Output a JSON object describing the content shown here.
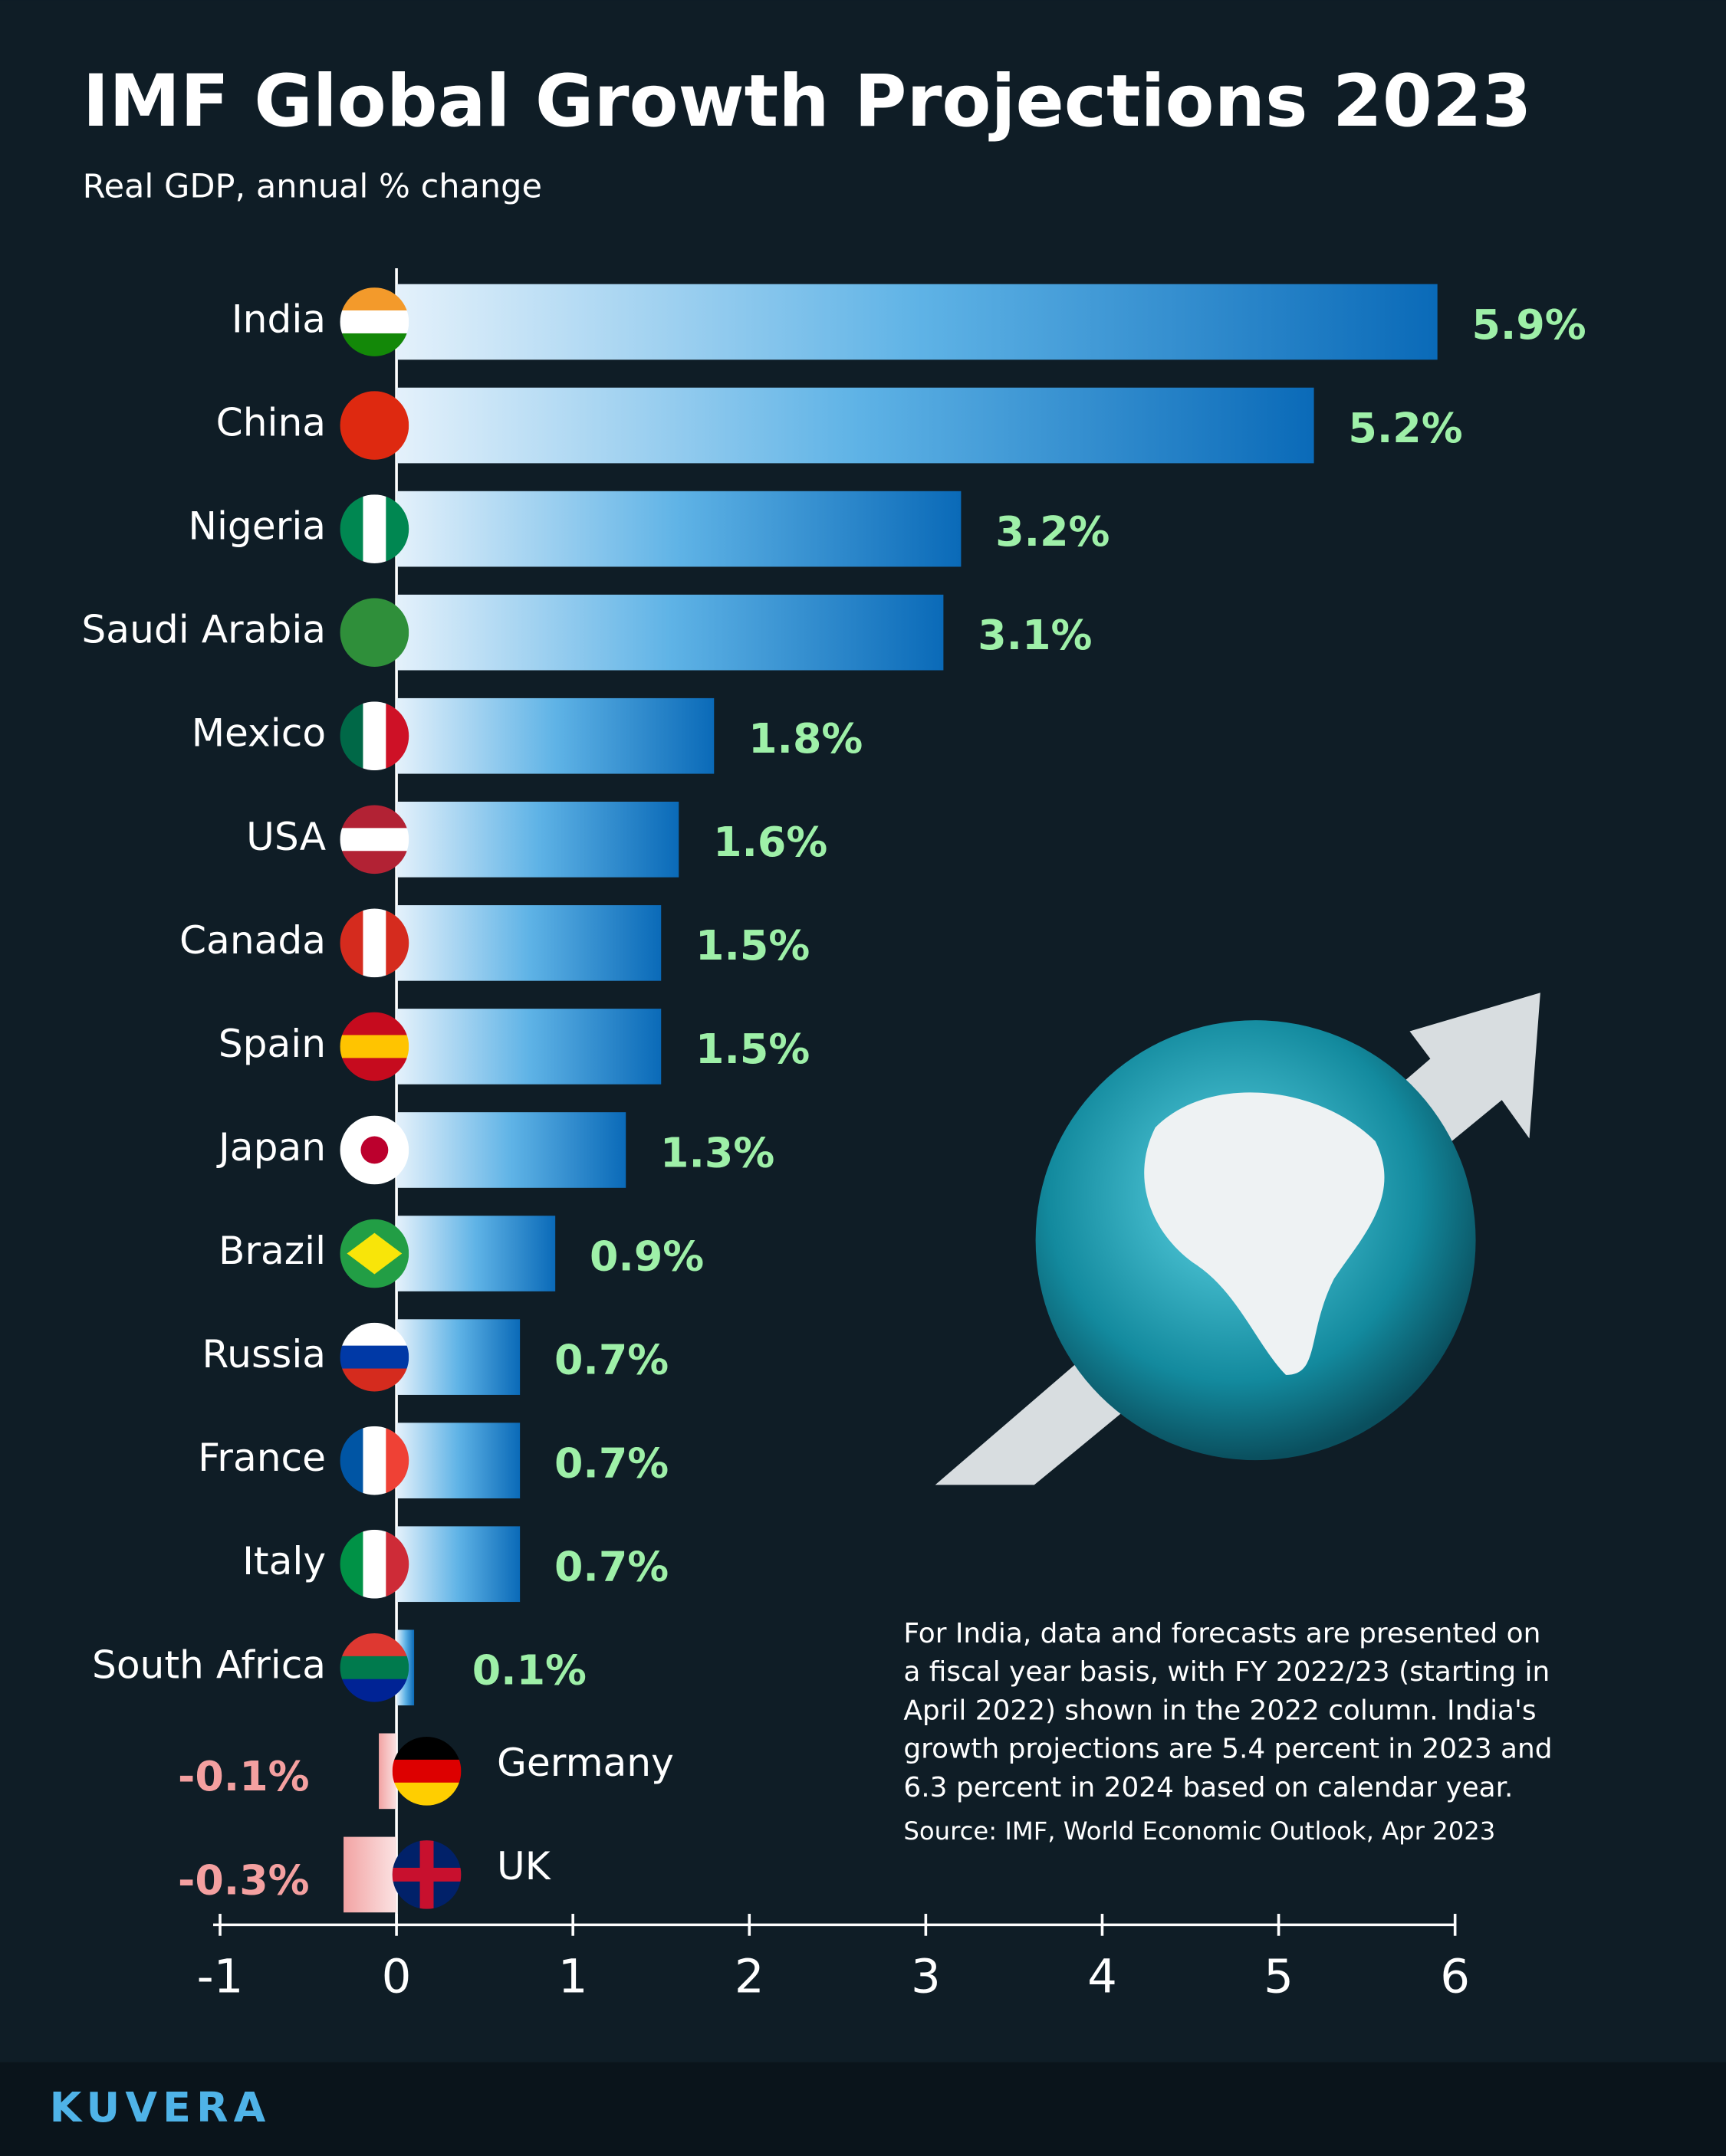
{
  "chart_data": {
    "type": "bar",
    "orientation": "horizontal",
    "title": "IMF Global Growth  Projections 2023",
    "subtitle": "Real GDP, annual % change",
    "categories": [
      "India",
      "China",
      "Nigeria",
      "Saudi Arabia",
      "Mexico",
      "USA",
      "Canada",
      "Spain",
      "Japan",
      "Brazil",
      "Russia",
      "France",
      "Italy",
      "South Africa",
      "Germany",
      "UK"
    ],
    "values": [
      5.9,
      5.2,
      3.2,
      3.1,
      1.8,
      1.6,
      1.5,
      1.5,
      1.3,
      0.9,
      0.7,
      0.7,
      0.7,
      0.1,
      -0.1,
      -0.3
    ],
    "value_labels": [
      "5.9%",
      "5.2%",
      "3.2%",
      "3.1%",
      "1.8%",
      "1.6%",
      "1.5%",
      "1.5%",
      "1.3%",
      "0.9%",
      "0.7%",
      "0.7%",
      "0.7%",
      "0.1%",
      "-0.1%",
      "-0.3%"
    ],
    "positive_color": "#0a6ab8",
    "negative_color": "#f2a3a3",
    "xlim": [
      -1,
      6
    ],
    "xticks": [
      -1,
      0,
      1,
      2,
      3,
      4,
      5,
      6
    ],
    "note": [
      "For India, data and forecasts are presented on",
      "a fiscal year basis, with FY 2022/23 (starting in",
      "April 2022) shown in the 2022 column. India's",
      "growth projections are 5.4 percent in 2023 and",
      "6.3 percent in 2024 based on calendar year."
    ],
    "source": "Source: IMF, World Economic Outlook, Apr 2023",
    "brand": "KUVERA"
  }
}
